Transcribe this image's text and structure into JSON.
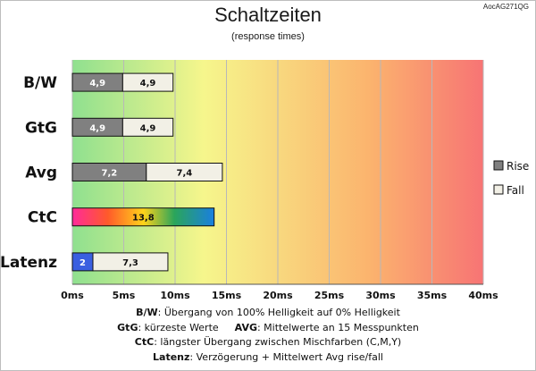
{
  "page": {
    "model_tag": "AocAG271QG"
  },
  "chart_data": {
    "type": "bar",
    "orientation": "horizontal",
    "stacked": true,
    "title": "Schaltzeiten",
    "subtitle": "(response times)",
    "categories": [
      "B/W",
      "GtG",
      "Avg",
      "CtC",
      "Latenz"
    ],
    "series": [
      {
        "name": "Rise",
        "values": [
          4.9,
          4.9,
          7.2,
          null,
          null
        ],
        "labels": [
          "4,9",
          "4,9",
          "7,2",
          "",
          ""
        ],
        "color": "#808080"
      },
      {
        "name": "Fall",
        "values": [
          4.9,
          4.9,
          7.4,
          null,
          7.3
        ],
        "labels": [
          "4,9",
          "4,9",
          "7,4",
          "",
          "7,3"
        ],
        "color": "#f2f0e6"
      },
      {
        "name": "",
        "values": [
          null,
          null,
          null,
          13.8,
          null
        ],
        "labels": [
          "",
          "",
          "",
          "13,8",
          ""
        ],
        "color": "rainbow"
      },
      {
        "name": "",
        "values": [
          null,
          null,
          null,
          null,
          2
        ],
        "labels": [
          "",
          "",
          "",
          "",
          "2"
        ],
        "color": "#3a5fe0"
      }
    ],
    "x_ticks": [
      "0ms",
      "5ms",
      "10ms",
      "15ms",
      "20ms",
      "25ms",
      "30ms",
      "35ms",
      "40ms"
    ],
    "xlim": [
      0,
      40
    ],
    "legend": {
      "position": "right",
      "entries": [
        "Rise",
        "Fall"
      ]
    },
    "background_gradient": [
      "#8fe08f",
      "#f6f68c",
      "#fbb46e",
      "#f77474"
    ]
  },
  "notes": [
    {
      "key": "B/W",
      "text": ":  Übergang von 100% Helligkeit auf 0% Helligkeit"
    },
    {
      "key": "GtG",
      "text": ": kürzeste  Werte"
    },
    {
      "key": "AVG",
      "text": ": Mittelwerte  an 15 Messpunkten"
    },
    {
      "key": "CtC",
      "text": ": längster Übergang  zwischen Mischfarben (C,M,Y)"
    },
    {
      "key": "Latenz",
      "text": ": Verzögerung  + Mittelwert Avg rise/fall"
    }
  ]
}
